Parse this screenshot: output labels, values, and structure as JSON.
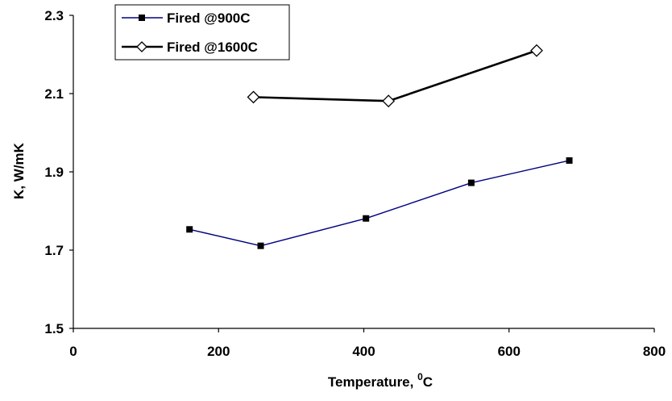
{
  "chart_data": {
    "type": "line",
    "xlabel": "Temperature, ",
    "xlabel_sup": "0",
    "xlabel_unit": "C",
    "ylabel": "K, W/mK",
    "xlim": [
      0,
      800
    ],
    "ylim": [
      1.5,
      2.3
    ],
    "xticks": [
      "0",
      "200",
      "400",
      "600",
      "800"
    ],
    "yticks": [
      "1.5",
      "1.7",
      "1.9",
      "2.1",
      "2.3"
    ],
    "grid": false,
    "legend_position": "top-left",
    "series": [
      {
        "name": "Fired @900C",
        "color": "#000080",
        "marker": "filled-square",
        "x": [
          160,
          258,
          403,
          548,
          683
        ],
        "y": [
          1.753,
          1.711,
          1.781,
          1.872,
          1.929
        ]
      },
      {
        "name": "Fired @1600C",
        "color": "#000000",
        "marker": "open-diamond",
        "x": [
          248,
          434,
          638
        ],
        "y": [
          2.091,
          2.081,
          2.21
        ]
      }
    ]
  }
}
